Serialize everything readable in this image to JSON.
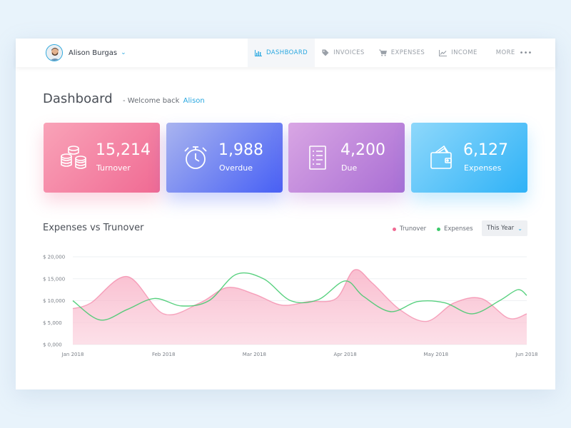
{
  "user": {
    "name": "Alison Burgas"
  },
  "nav": {
    "items": [
      {
        "label": "DASHBOARD",
        "icon": "bar-chart-icon",
        "active": true
      },
      {
        "label": "INVOICES",
        "icon": "tag-icon",
        "active": false
      },
      {
        "label": "EXPENSES",
        "icon": "cart-icon",
        "active": false
      },
      {
        "label": "INCOME",
        "icon": "line-chart-icon",
        "active": false
      }
    ],
    "more_label": "MORE",
    "more_icon": "dots-icon"
  },
  "page": {
    "title": "Dashboard",
    "welcome_prefix": "- Welcome back",
    "welcome_name": "Alison"
  },
  "stats": [
    {
      "value": "15,214",
      "label": "Turnover",
      "icon": "coins-icon",
      "color": "#f06a93"
    },
    {
      "value": "1,988",
      "label": "Overdue",
      "icon": "stopwatch-icon",
      "color": "#4760f5"
    },
    {
      "value": "4,200",
      "label": "Due",
      "icon": "document-list-icon",
      "color": "#a96ed4"
    },
    {
      "value": "6,127",
      "label": "Expenses",
      "icon": "wallet-icon",
      "color": "#2fb2f7"
    }
  ],
  "chart_section": {
    "title": "Expenses vs Trunover",
    "legend": [
      {
        "label": "Trunover",
        "color": "#f06a93"
      },
      {
        "label": "Expenses",
        "color": "#3cc96a"
      }
    ],
    "period_select": "This Year"
  },
  "chart_data": {
    "type": "area",
    "title": "Expenses vs Trunover",
    "x_ticks": [
      "Jan 2018",
      "Feb 2018",
      "Mar 2018",
      "Apr 2018",
      "May 2018",
      "Jun 2018"
    ],
    "y_ticks": [
      "$ 0,000",
      "$ 5,000",
      "$ 10,000",
      "$ 15,000",
      "$ 20,000"
    ],
    "ylim": [
      0,
      20000
    ],
    "grid": true,
    "legend_position": "top-right",
    "series": [
      {
        "name": "Trunover",
        "color": "#f06a93",
        "x": [
          0,
          0.2,
          0.6,
          1.0,
          1.4,
          1.7,
          2.0,
          2.3,
          2.6,
          2.9,
          3.1,
          3.3,
          3.6,
          3.9,
          4.2,
          4.5,
          4.8,
          5.0
        ],
        "values": [
          8200,
          9500,
          15500,
          7000,
          9500,
          13000,
          11500,
          9000,
          9800,
          10500,
          17000,
          14000,
          8000,
          5300,
          9500,
          10500,
          6000,
          7000
        ]
      },
      {
        "name": "Expenses",
        "color": "#3cc96a",
        "x": [
          0,
          0.3,
          0.6,
          0.9,
          1.2,
          1.5,
          1.8,
          2.1,
          2.4,
          2.7,
          3.0,
          3.2,
          3.5,
          3.8,
          4.1,
          4.4,
          4.7,
          4.9,
          5.0
        ],
        "values": [
          10000,
          5600,
          8000,
          10500,
          8800,
          10000,
          16000,
          15000,
          10000,
          10200,
          14500,
          11000,
          7500,
          9800,
          9500,
          7000,
          10000,
          12500,
          11200
        ]
      }
    ]
  }
}
